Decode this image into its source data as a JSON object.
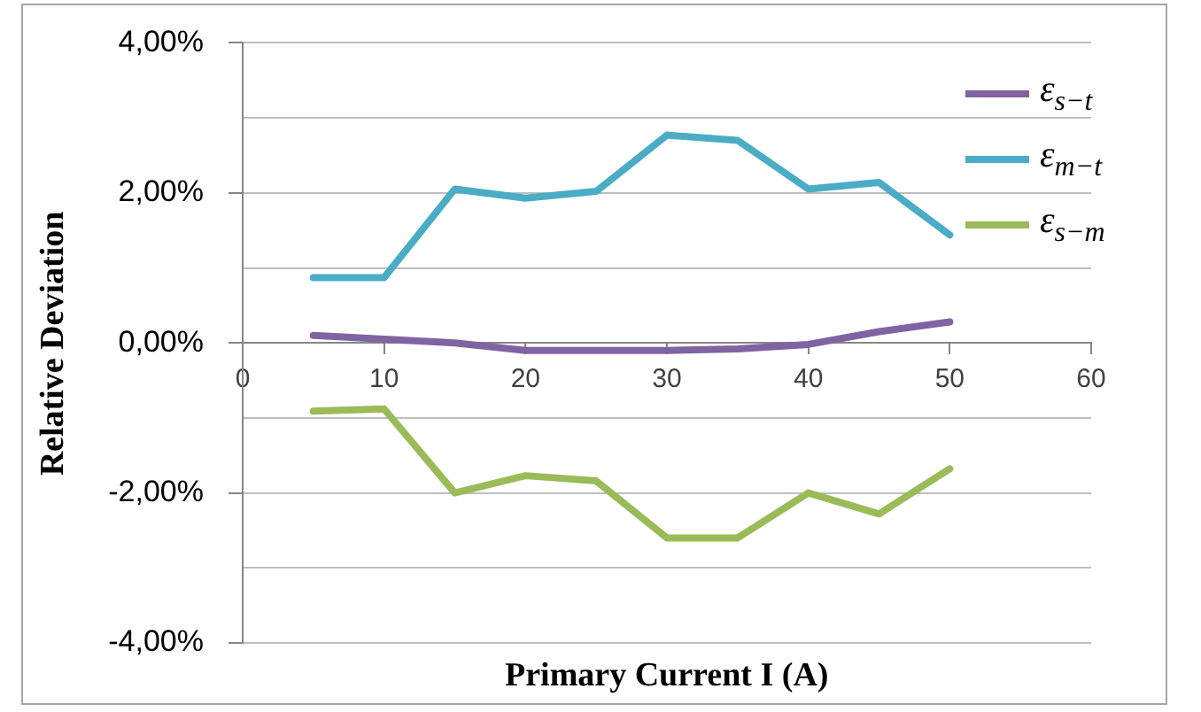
{
  "chart_data": {
    "type": "line",
    "xlabel": "Primary Current I (A)",
    "ylabel": "Relative Deviation",
    "x": [
      5,
      10,
      15,
      20,
      25,
      30,
      35,
      40,
      45,
      50
    ],
    "series": [
      {
        "name": "ε$_{s−t}$",
        "color": "#8064a2",
        "values": [
          0.1,
          0.05,
          0.0,
          -0.1,
          -0.1,
          -0.1,
          -0.08,
          -0.02,
          0.15,
          0.28
        ]
      },
      {
        "name": "ε$_{m−t}$",
        "color": "#4bacc6",
        "values": [
          0.87,
          0.87,
          2.05,
          1.93,
          2.02,
          2.77,
          2.7,
          2.05,
          2.14,
          1.44
        ]
      },
      {
        "name": "ε$_{s−m}$",
        "color": "#9bbb59",
        "values": [
          -0.91,
          -0.88,
          -2.0,
          -1.77,
          -1.84,
          -2.6,
          -2.6,
          -2.0,
          -2.28,
          -1.68
        ]
      }
    ],
    "xlim": [
      0,
      60
    ],
    "xticks": [
      0,
      10,
      20,
      30,
      40,
      50,
      60
    ],
    "ylim": [
      -4,
      4
    ],
    "yticks": [
      {
        "value": -4,
        "label": "-4,00%"
      },
      {
        "value": -3,
        "label": null
      },
      {
        "value": -2,
        "label": "-2,00%"
      },
      {
        "value": -1,
        "label": null
      },
      {
        "value": 0,
        "label": "0,00%"
      },
      {
        "value": 1,
        "label": null
      },
      {
        "value": 2,
        "label": "2,00%"
      },
      {
        "value": 3,
        "label": null
      },
      {
        "value": 4,
        "label": "4,00%"
      }
    ],
    "grid": "y",
    "legend": "top right",
    "marker": "none",
    "line_style": "solid"
  }
}
